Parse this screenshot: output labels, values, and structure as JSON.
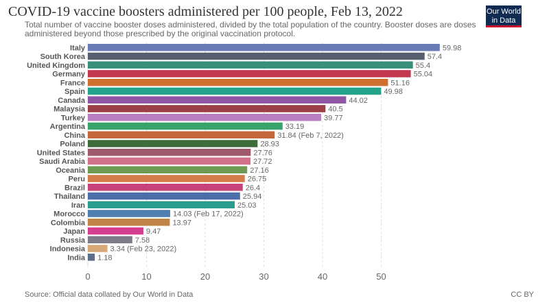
{
  "header": {
    "title": "COVID-19 vaccine boosters administered per 100 people, Feb 13, 2022",
    "subtitle": "Total number of vaccine booster doses administered, divided by the total population of the country. Booster doses are doses administered beyond those prescribed by the original vaccination protocol.",
    "logo_line1": "Our World",
    "logo_line2": "in Data"
  },
  "footer": {
    "source": "Source: Official data collated by Our World in Data",
    "license": "CC BY"
  },
  "chart_data": {
    "type": "bar",
    "orientation": "horizontal",
    "categories": [
      "Italy",
      "South Korea",
      "United Kingdom",
      "Germany",
      "France",
      "Spain",
      "Canada",
      "Malaysia",
      "Turkey",
      "Argentina",
      "China",
      "Poland",
      "United States",
      "Saudi Arabia",
      "Oceania",
      "Peru",
      "Brazil",
      "Thailand",
      "Iran",
      "Morocco",
      "Colombia",
      "Japan",
      "Russia",
      "Indonesia",
      "India"
    ],
    "values": [
      59.98,
      57.4,
      55.4,
      55.04,
      51.16,
      49.98,
      44.02,
      40.5,
      39.77,
      33.19,
      31.84,
      28.93,
      27.76,
      27.72,
      27.16,
      26.75,
      26.4,
      25.94,
      25.03,
      14.03,
      13.97,
      9.47,
      7.58,
      3.34,
      1.18
    ],
    "value_labels": [
      "59.98",
      "57.4",
      "55.4",
      "55.04",
      "51.16",
      "49.98",
      "44.02",
      "40.5",
      "39.77",
      "33.19",
      "31.84 (Feb 7, 2022)",
      "28.93",
      "27.76",
      "27.72",
      "27.16",
      "26.75",
      "26.4",
      "25.94",
      "25.03",
      "14.03 (Feb 17, 2022)",
      "13.97",
      "9.47",
      "7.58",
      "3.34 (Feb 23, 2022)",
      "1.18"
    ],
    "colors": [
      "#6a7bb5",
      "#58606f",
      "#3a8f7a",
      "#c2374e",
      "#cf7030",
      "#25a38a",
      "#8e55a5",
      "#9b3e45",
      "#b77fc0",
      "#38a36a",
      "#c4673a",
      "#3e6b3a",
      "#9f5a6e",
      "#d0718a",
      "#6e9a52",
      "#d57d4a",
      "#c7427a",
      "#4b6daa",
      "#2b9b8b",
      "#4e7fb0",
      "#c08448",
      "#d53e8e",
      "#7d7d8a",
      "#d7a878",
      "#5e6f8a"
    ],
    "xticks": [
      0,
      10,
      20,
      30,
      40,
      50
    ],
    "xlim": [
      0,
      60
    ],
    "grid": true
  }
}
